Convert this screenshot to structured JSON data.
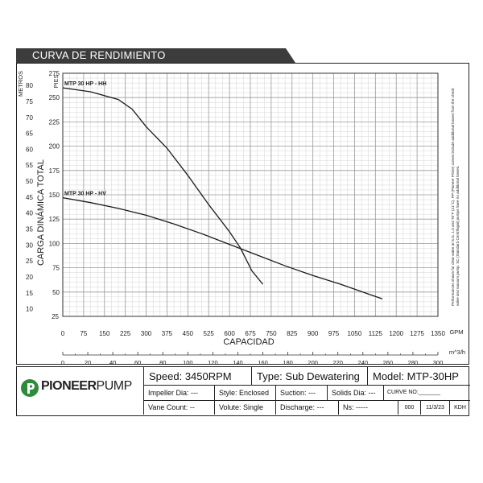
{
  "header": {
    "title": "CURVA DE RENDIMIENTO"
  },
  "side_note": "Performances shown for clear water at S.G. 1.0 and 70°F (21°C). PP (Pioneer Prime) curves include additional losses from the check valve and vacuum pump. SC (Standard Centrifugal) pumps have no additional losses.",
  "titleblock": {
    "brand_bold": "PIONEER",
    "brand_light": "PUMP",
    "speed": "Speed: 3450RPM",
    "type": "Type: Sub Dewatering",
    "model": "Model: MTP-30HP",
    "impeller": "Impeller Dia: ---",
    "style": "Style: Enclosed",
    "suction": "Suction: ---",
    "solids": "Solids Dia: ---",
    "curve_no": "CURVE NO:_______",
    "vane": "Vane Count:  --",
    "volute": "Volute:  Single",
    "discharge": "Discharge: ---",
    "ns": "Ns:    -----",
    "rev": "000",
    "date": "11/3/23",
    "initials": "KDH"
  },
  "chart_data": {
    "type": "line",
    "xlabel": "CAPACIDAD",
    "x_unit": "GPM",
    "x2_unit": "m^3/h",
    "ylabel": "CARGA DINÁMICA TOTAL",
    "y_unit": "PIES",
    "y2_unit": "METROS",
    "xlim": [
      0,
      1350
    ],
    "ylim": [
      25,
      275
    ],
    "x_ticks": [
      0,
      75,
      150,
      225,
      300,
      375,
      450,
      525,
      600,
      675,
      750,
      825,
      900,
      975,
      1050,
      1125,
      1200,
      1275,
      1350
    ],
    "y_ticks": [
      50,
      75,
      100,
      125,
      150,
      175,
      200,
      225,
      250,
      275
    ],
    "x2_ticks": [
      0,
      20,
      40,
      60,
      80,
      100,
      120,
      140,
      160,
      180,
      200,
      220,
      240,
      260,
      280,
      300
    ],
    "y2_ticks": [
      10,
      15,
      20,
      25,
      30,
      35,
      40,
      45,
      50,
      55,
      60,
      65,
      70,
      75,
      80
    ],
    "y2_top_tick": "METROS",
    "grid": true,
    "series": [
      {
        "name": "MTP 30 HP - HH",
        "x": [
          0,
          100,
          200,
          250,
          300,
          375,
          450,
          525,
          600,
          640,
          680,
          720
        ],
        "y": [
          260,
          256,
          248,
          238,
          220,
          198,
          170,
          140,
          112,
          95,
          72,
          58
        ]
      },
      {
        "name": "MTP 30 HP - HV",
        "x": [
          0,
          100,
          200,
          300,
          400,
          500,
          600,
          700,
          800,
          900,
          1000,
          1100,
          1150
        ],
        "y": [
          147,
          142,
          136,
          129,
          120,
          110,
          99,
          88,
          77,
          67,
          58,
          48,
          43
        ]
      }
    ]
  }
}
